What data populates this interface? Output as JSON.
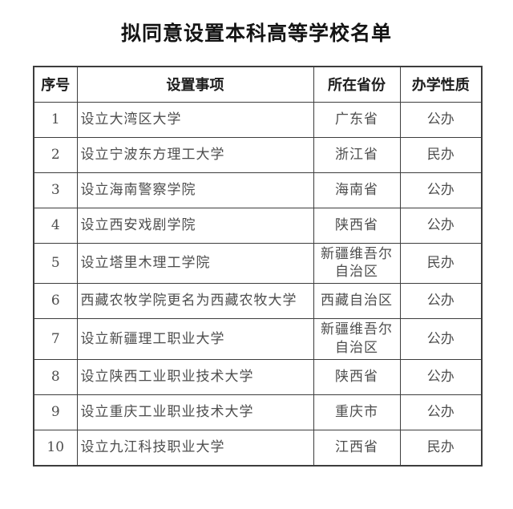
{
  "page": {
    "title": "拟同意设置本科高等学校名单"
  },
  "table": {
    "headers": [
      "序号",
      "设置事项",
      "所在省份",
      "办学性质"
    ],
    "rows": [
      {
        "no": "1",
        "item": "设立大湾区大学",
        "province": "广东省",
        "nature": "公办"
      },
      {
        "no": "2",
        "item": "设立宁波东方理工大学",
        "province": "浙江省",
        "nature": "民办"
      },
      {
        "no": "3",
        "item": "设立海南警察学院",
        "province": "海南省",
        "nature": "公办"
      },
      {
        "no": "4",
        "item": "设立西安戏剧学院",
        "province": "陕西省",
        "nature": "公办"
      },
      {
        "no": "5",
        "item": "设立塔里木理工学院",
        "province": "新疆维吾尔自治区",
        "nature": "民办"
      },
      {
        "no": "6",
        "item": "西藏农牧学院更名为西藏农牧大学",
        "province": "西藏自治区",
        "nature": "公办"
      },
      {
        "no": "7",
        "item": "设立新疆理工职业大学",
        "province": "新疆维吾尔自治区",
        "nature": "公办"
      },
      {
        "no": "8",
        "item": "设立陕西工业职业技术大学",
        "province": "陕西省",
        "nature": "公办"
      },
      {
        "no": "9",
        "item": "设立重庆工业职业技术大学",
        "province": "重庆市",
        "nature": "公办"
      },
      {
        "no": "10",
        "item": "设立九江科技职业大学",
        "province": "江西省",
        "nature": "民办"
      }
    ]
  },
  "colors": {
    "background": "#ffffff",
    "title_text": "#141414",
    "header_text": "#1d1d1d",
    "cell_text": "#4d4d4d",
    "border": "#3d3d3d"
  }
}
